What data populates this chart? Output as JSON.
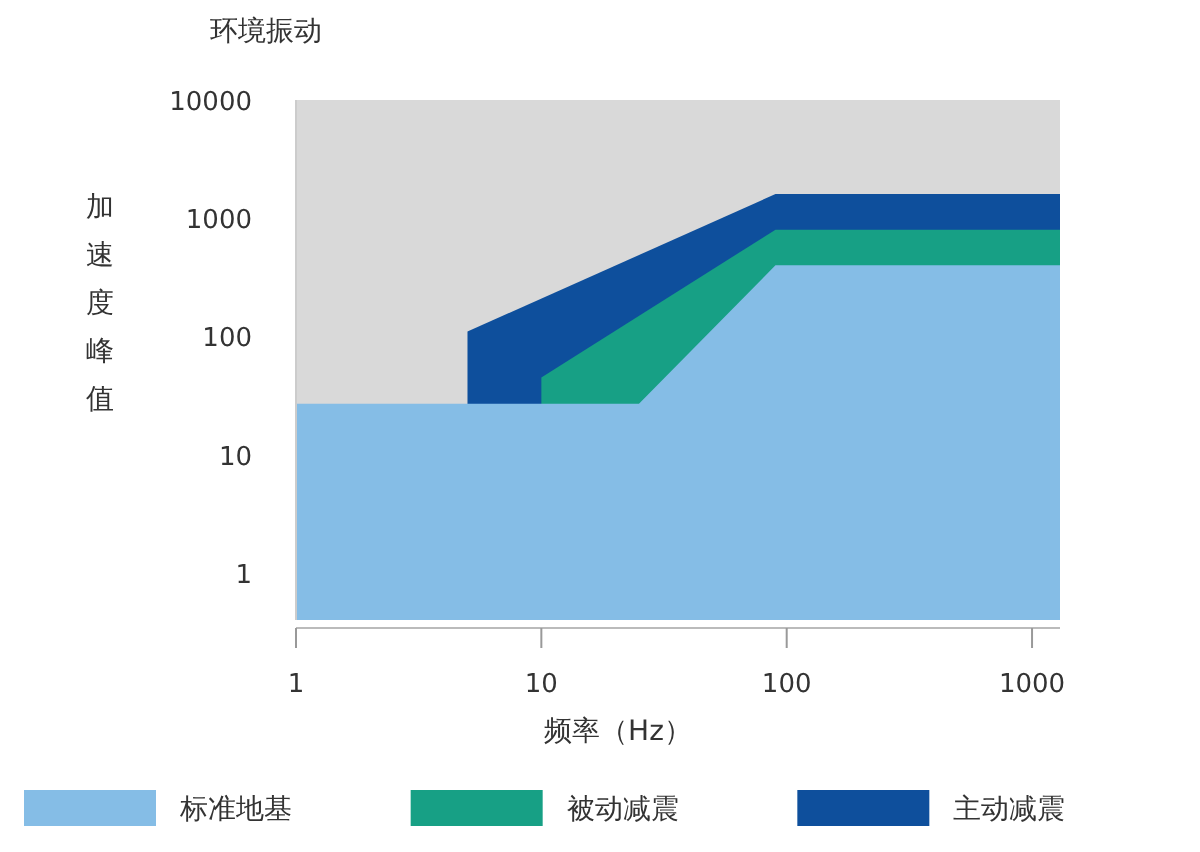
{
  "chart_data": {
    "type": "area",
    "title": "环境振动",
    "xlabel": "频率（Hz）",
    "ylabel": "加速度峰值",
    "log": "xy",
    "xlim": [
      1,
      1300
    ],
    "ylim": [
      0.4,
      10000
    ],
    "xticks": [
      1,
      10,
      100,
      1000
    ],
    "yticks": [
      1,
      10,
      100,
      1000,
      10000
    ],
    "grid": false,
    "legend": "bottom",
    "series": [
      {
        "name": "标准地基",
        "color": "#85bde6",
        "x": [
          1,
          25,
          90,
          1300
        ],
        "values": [
          27,
          27,
          400,
          400
        ]
      },
      {
        "name": "被动减震",
        "color": "#17a085",
        "x": [
          10,
          90,
          1300
        ],
        "values": [
          45,
          800,
          800
        ]
      },
      {
        "name": "主动减震",
        "color": "#0e4f9c",
        "x": [
          5,
          90,
          1300
        ],
        "values": [
          110,
          1600,
          1600
        ]
      }
    ]
  }
}
